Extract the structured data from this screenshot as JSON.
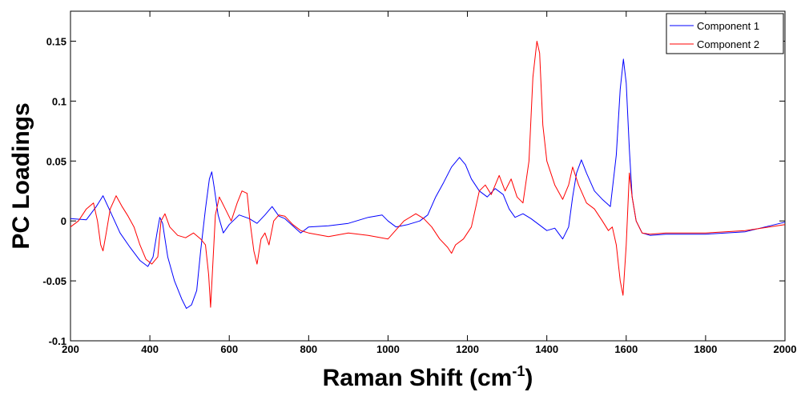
{
  "chart_data": {
    "type": "line",
    "title": "",
    "xlabel": "Raman Shift (cm",
    "xlabel_sup": "-1",
    "xlabel_close": ")",
    "ylabel": "PC Loadings",
    "xlim": [
      200,
      2000
    ],
    "ylim": [
      -0.1,
      0.175
    ],
    "xticks": [
      200,
      400,
      600,
      800,
      1000,
      1200,
      1400,
      1600,
      1800,
      2000
    ],
    "yticks": [
      -0.1,
      -0.05,
      0,
      0.05,
      0.1,
      0.15
    ],
    "ytick_labels": [
      "-0.1",
      "-0.05",
      "0",
      "0.05",
      "0.1",
      "0.15"
    ],
    "grid": false,
    "legend_position": "top-right",
    "series": [
      {
        "name": "Component 1",
        "color": "#0000ff",
        "points": [
          [
            200,
            0.002
          ],
          [
            240,
            0.001
          ],
          [
            265,
            0.012
          ],
          [
            282,
            0.021
          ],
          [
            300,
            0.008
          ],
          [
            325,
            -0.01
          ],
          [
            350,
            -0.022
          ],
          [
            375,
            -0.033
          ],
          [
            395,
            -0.038
          ],
          [
            408,
            -0.03
          ],
          [
            418,
            -0.01
          ],
          [
            425,
            0.003
          ],
          [
            432,
            -0.002
          ],
          [
            445,
            -0.03
          ],
          [
            462,
            -0.05
          ],
          [
            480,
            -0.065
          ],
          [
            492,
            -0.073
          ],
          [
            505,
            -0.07
          ],
          [
            518,
            -0.058
          ],
          [
            528,
            -0.025
          ],
          [
            540,
            0.01
          ],
          [
            550,
            0.035
          ],
          [
            556,
            0.041
          ],
          [
            562,
            0.028
          ],
          [
            572,
            0.005
          ],
          [
            585,
            -0.01
          ],
          [
            600,
            -0.003
          ],
          [
            625,
            0.005
          ],
          [
            650,
            0.002
          ],
          [
            670,
            -0.002
          ],
          [
            690,
            0.005
          ],
          [
            708,
            0.012
          ],
          [
            725,
            0.004
          ],
          [
            740,
            0.002
          ],
          [
            760,
            -0.004
          ],
          [
            780,
            -0.01
          ],
          [
            800,
            -0.005
          ],
          [
            850,
            -0.004
          ],
          [
            900,
            -0.002
          ],
          [
            950,
            0.003
          ],
          [
            985,
            0.005
          ],
          [
            1000,
            0.0
          ],
          [
            1020,
            -0.005
          ],
          [
            1050,
            -0.003
          ],
          [
            1080,
            0.0
          ],
          [
            1100,
            0.005
          ],
          [
            1120,
            0.02
          ],
          [
            1140,
            0.032
          ],
          [
            1160,
            0.045
          ],
          [
            1180,
            0.053
          ],
          [
            1195,
            0.047
          ],
          [
            1210,
            0.035
          ],
          [
            1230,
            0.025
          ],
          [
            1250,
            0.02
          ],
          [
            1270,
            0.027
          ],
          [
            1290,
            0.022
          ],
          [
            1305,
            0.01
          ],
          [
            1320,
            0.003
          ],
          [
            1340,
            0.006
          ],
          [
            1360,
            0.002
          ],
          [
            1380,
            -0.003
          ],
          [
            1400,
            -0.008
          ],
          [
            1420,
            -0.006
          ],
          [
            1440,
            -0.015
          ],
          [
            1455,
            -0.005
          ],
          [
            1465,
            0.02
          ],
          [
            1475,
            0.04
          ],
          [
            1487,
            0.051
          ],
          [
            1500,
            0.04
          ],
          [
            1520,
            0.025
          ],
          [
            1540,
            0.018
          ],
          [
            1560,
            0.012
          ],
          [
            1575,
            0.055
          ],
          [
            1585,
            0.11
          ],
          [
            1593,
            0.135
          ],
          [
            1600,
            0.115
          ],
          [
            1608,
            0.06
          ],
          [
            1615,
            0.02
          ],
          [
            1625,
            0.0
          ],
          [
            1640,
            -0.01
          ],
          [
            1660,
            -0.012
          ],
          [
            1700,
            -0.011
          ],
          [
            1800,
            -0.011
          ],
          [
            1900,
            -0.009
          ],
          [
            2000,
            -0.001
          ]
        ]
      },
      {
        "name": "Component 2",
        "color": "#ff0000",
        "points": [
          [
            200,
            -0.005
          ],
          [
            220,
            0.0
          ],
          [
            240,
            0.01
          ],
          [
            258,
            0.015
          ],
          [
            268,
            0.0
          ],
          [
            276,
            -0.02
          ],
          [
            282,
            -0.025
          ],
          [
            290,
            -0.01
          ],
          [
            300,
            0.01
          ],
          [
            315,
            0.021
          ],
          [
            330,
            0.012
          ],
          [
            345,
            0.004
          ],
          [
            360,
            -0.005
          ],
          [
            375,
            -0.02
          ],
          [
            390,
            -0.032
          ],
          [
            405,
            -0.036
          ],
          [
            420,
            -0.03
          ],
          [
            428,
            0.0
          ],
          [
            438,
            0.006
          ],
          [
            450,
            -0.005
          ],
          [
            470,
            -0.012
          ],
          [
            490,
            -0.014
          ],
          [
            510,
            -0.01
          ],
          [
            528,
            -0.015
          ],
          [
            540,
            -0.02
          ],
          [
            548,
            -0.045
          ],
          [
            553,
            -0.072
          ],
          [
            558,
            -0.04
          ],
          [
            565,
            0.005
          ],
          [
            575,
            0.02
          ],
          [
            590,
            0.01
          ],
          [
            605,
            0.0
          ],
          [
            620,
            0.015
          ],
          [
            632,
            0.025
          ],
          [
            645,
            0.023
          ],
          [
            652,
            0.0
          ],
          [
            662,
            -0.025
          ],
          [
            670,
            -0.036
          ],
          [
            680,
            -0.015
          ],
          [
            690,
            -0.01
          ],
          [
            700,
            -0.02
          ],
          [
            712,
            0.0
          ],
          [
            725,
            0.005
          ],
          [
            740,
            0.004
          ],
          [
            760,
            -0.003
          ],
          [
            780,
            -0.008
          ],
          [
            800,
            -0.01
          ],
          [
            850,
            -0.013
          ],
          [
            900,
            -0.01
          ],
          [
            950,
            -0.012
          ],
          [
            1000,
            -0.015
          ],
          [
            1040,
            0.0
          ],
          [
            1070,
            0.006
          ],
          [
            1090,
            0.002
          ],
          [
            1110,
            -0.005
          ],
          [
            1130,
            -0.015
          ],
          [
            1150,
            -0.022
          ],
          [
            1160,
            -0.027
          ],
          [
            1170,
            -0.02
          ],
          [
            1190,
            -0.015
          ],
          [
            1210,
            -0.005
          ],
          [
            1230,
            0.025
          ],
          [
            1245,
            0.03
          ],
          [
            1260,
            0.022
          ],
          [
            1280,
            0.038
          ],
          [
            1295,
            0.025
          ],
          [
            1310,
            0.035
          ],
          [
            1325,
            0.02
          ],
          [
            1340,
            0.015
          ],
          [
            1355,
            0.05
          ],
          [
            1365,
            0.12
          ],
          [
            1375,
            0.15
          ],
          [
            1382,
            0.14
          ],
          [
            1390,
            0.08
          ],
          [
            1400,
            0.05
          ],
          [
            1420,
            0.03
          ],
          [
            1440,
            0.018
          ],
          [
            1455,
            0.03
          ],
          [
            1465,
            0.045
          ],
          [
            1480,
            0.03
          ],
          [
            1500,
            0.015
          ],
          [
            1520,
            0.01
          ],
          [
            1540,
            0.0
          ],
          [
            1555,
            -0.008
          ],
          [
            1565,
            -0.005
          ],
          [
            1575,
            -0.02
          ],
          [
            1585,
            -0.05
          ],
          [
            1592,
            -0.062
          ],
          [
            1600,
            -0.02
          ],
          [
            1608,
            0.04
          ],
          [
            1615,
            0.02
          ],
          [
            1625,
            0.0
          ],
          [
            1640,
            -0.01
          ],
          [
            1660,
            -0.011
          ],
          [
            1700,
            -0.01
          ],
          [
            1800,
            -0.01
          ],
          [
            1900,
            -0.008
          ],
          [
            2000,
            -0.003
          ]
        ]
      }
    ]
  }
}
